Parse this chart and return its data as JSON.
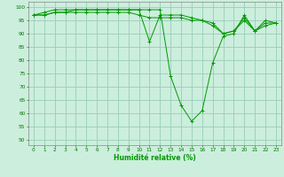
{
  "xlabel": "Humidité relative (%)",
  "ylabel": "",
  "background_color": "#cceedd",
  "grid_color": "#99ccbb",
  "line_color": "#009900",
  "xlim": [
    -0.5,
    23.5
  ],
  "ylim": [
    48,
    102
  ],
  "yticks": [
    50,
    55,
    60,
    65,
    70,
    75,
    80,
    85,
    90,
    95,
    100
  ],
  "xticks": [
    0,
    1,
    2,
    3,
    4,
    5,
    6,
    7,
    8,
    9,
    10,
    11,
    12,
    13,
    14,
    15,
    16,
    17,
    18,
    19,
    20,
    21,
    22,
    23
  ],
  "series": [
    [
      97,
      98,
      99,
      99,
      99,
      99,
      99,
      99,
      99,
      99,
      99,
      99,
      99,
      74,
      63,
      57,
      61,
      79,
      89,
      90,
      97,
      91,
      95,
      94
    ],
    [
      97,
      97,
      98,
      98,
      99,
      99,
      99,
      99,
      99,
      99,
      99,
      87,
      97,
      97,
      97,
      96,
      95,
      94,
      90,
      91,
      96,
      91,
      94,
      94
    ],
    [
      97,
      97,
      98,
      98,
      98,
      98,
      98,
      98,
      98,
      98,
      97,
      96,
      96,
      96,
      96,
      95,
      95,
      93,
      90,
      91,
      95,
      91,
      93,
      94
    ]
  ]
}
